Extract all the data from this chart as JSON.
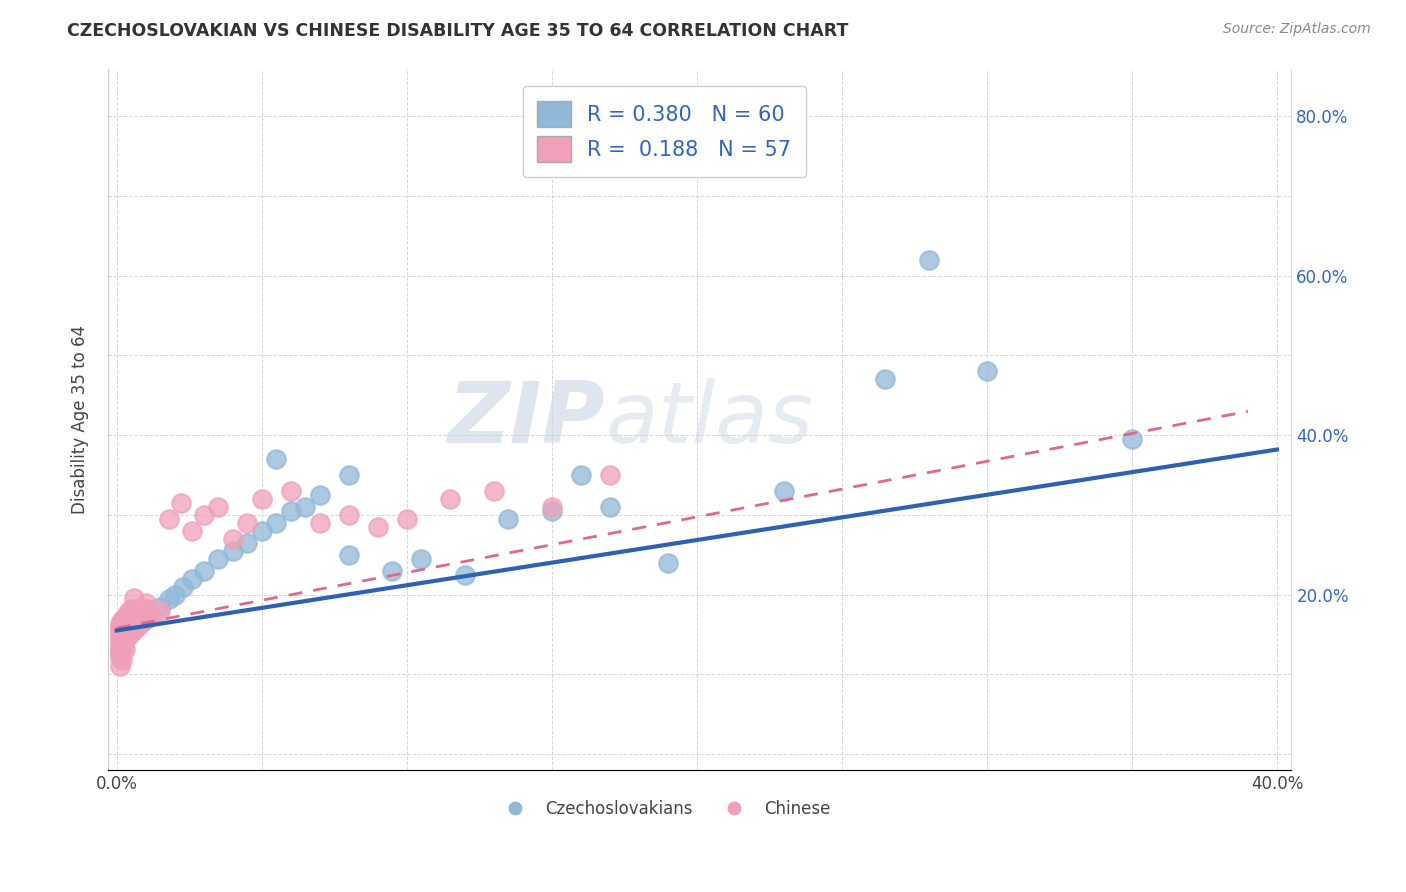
{
  "title": "CZECHOSLOVAKIAN VS CHINESE DISABILITY AGE 35 TO 64 CORRELATION CHART",
  "source": "Source: ZipAtlas.com",
  "ylabel": "Disability Age 35 to 64",
  "xlim": [
    -0.003,
    0.405
  ],
  "ylim": [
    -0.02,
    0.86
  ],
  "x_ticks": [
    0.0,
    0.05,
    0.1,
    0.15,
    0.2,
    0.25,
    0.3,
    0.35,
    0.4
  ],
  "x_tick_labels_show": [
    "0.0%",
    "40.0%"
  ],
  "x_tick_labels_pos": [
    0.0,
    0.4
  ],
  "y_ticks": [
    0.0,
    0.1,
    0.2,
    0.3,
    0.4,
    0.5,
    0.6,
    0.7,
    0.8
  ],
  "y_tick_labels": {
    "0.20": "20.0%",
    "0.40": "40.0%",
    "0.60": "60.0%",
    "0.80": "80.0%"
  },
  "blue_dot_color": "#90b8d8",
  "pink_dot_color": "#f0a0b8",
  "blue_line_color": "#3060b0",
  "pink_line_color": "#e06888",
  "R_blue": 0.38,
  "N_blue": 60,
  "R_pink": 0.188,
  "N_pink": 57,
  "watermark_zip": "ZIP",
  "watermark_atlas": "atlas",
  "legend_blue": "Czechoslovakians",
  "legend_pink": "Chinese",
  "blue_scatter_x": [
    0.001,
    0.001,
    0.001,
    0.001,
    0.001,
    0.002,
    0.002,
    0.002,
    0.002,
    0.003,
    0.003,
    0.003,
    0.004,
    0.004,
    0.004,
    0.005,
    0.005,
    0.005,
    0.006,
    0.006,
    0.006,
    0.007,
    0.007,
    0.008,
    0.008,
    0.009,
    0.009,
    0.01,
    0.01,
    0.012,
    0.015,
    0.018,
    0.02,
    0.023,
    0.026,
    0.03,
    0.035,
    0.04,
    0.045,
    0.05,
    0.055,
    0.06,
    0.065,
    0.07,
    0.08,
    0.095,
    0.105,
    0.12,
    0.135,
    0.15,
    0.17,
    0.19,
    0.055,
    0.08,
    0.16,
    0.23,
    0.265,
    0.3,
    0.28,
    0.35
  ],
  "blue_scatter_y": [
    0.13,
    0.14,
    0.15,
    0.16,
    0.125,
    0.145,
    0.135,
    0.155,
    0.165,
    0.148,
    0.158,
    0.168,
    0.152,
    0.162,
    0.172,
    0.155,
    0.165,
    0.175,
    0.158,
    0.168,
    0.178,
    0.162,
    0.172,
    0.165,
    0.175,
    0.168,
    0.178,
    0.17,
    0.182,
    0.175,
    0.185,
    0.195,
    0.2,
    0.21,
    0.22,
    0.23,
    0.245,
    0.255,
    0.265,
    0.28,
    0.29,
    0.305,
    0.31,
    0.325,
    0.25,
    0.23,
    0.245,
    0.225,
    0.295,
    0.305,
    0.31,
    0.24,
    0.37,
    0.35,
    0.35,
    0.33,
    0.47,
    0.48,
    0.62,
    0.395
  ],
  "pink_scatter_x": [
    0.001,
    0.001,
    0.001,
    0.001,
    0.001,
    0.001,
    0.001,
    0.001,
    0.001,
    0.001,
    0.001,
    0.002,
    0.002,
    0.002,
    0.002,
    0.002,
    0.002,
    0.003,
    0.003,
    0.003,
    0.003,
    0.003,
    0.004,
    0.004,
    0.004,
    0.005,
    0.005,
    0.005,
    0.006,
    0.006,
    0.006,
    0.007,
    0.007,
    0.008,
    0.008,
    0.009,
    0.01,
    0.01,
    0.012,
    0.015,
    0.018,
    0.022,
    0.026,
    0.03,
    0.035,
    0.04,
    0.045,
    0.05,
    0.06,
    0.07,
    0.08,
    0.09,
    0.1,
    0.115,
    0.13,
    0.15,
    0.17
  ],
  "pink_scatter_y": [
    0.135,
    0.14,
    0.145,
    0.15,
    0.155,
    0.16,
    0.165,
    0.125,
    0.12,
    0.13,
    0.11,
    0.138,
    0.148,
    0.158,
    0.168,
    0.128,
    0.118,
    0.142,
    0.152,
    0.162,
    0.172,
    0.132,
    0.148,
    0.158,
    0.178,
    0.152,
    0.162,
    0.182,
    0.156,
    0.176,
    0.196,
    0.16,
    0.18,
    0.163,
    0.183,
    0.167,
    0.17,
    0.19,
    0.175,
    0.18,
    0.295,
    0.315,
    0.28,
    0.3,
    0.31,
    0.27,
    0.29,
    0.32,
    0.33,
    0.29,
    0.3,
    0.285,
    0.295,
    0.32,
    0.33,
    0.31,
    0.35
  ],
  "blue_trend_x0": 0.0,
  "blue_trend_y0": 0.155,
  "blue_trend_x1": 0.4,
  "blue_trend_y1": 0.382,
  "pink_trend_x0": 0.0,
  "pink_trend_y0": 0.158,
  "pink_trend_x1": 0.39,
  "pink_trend_y1": 0.43
}
